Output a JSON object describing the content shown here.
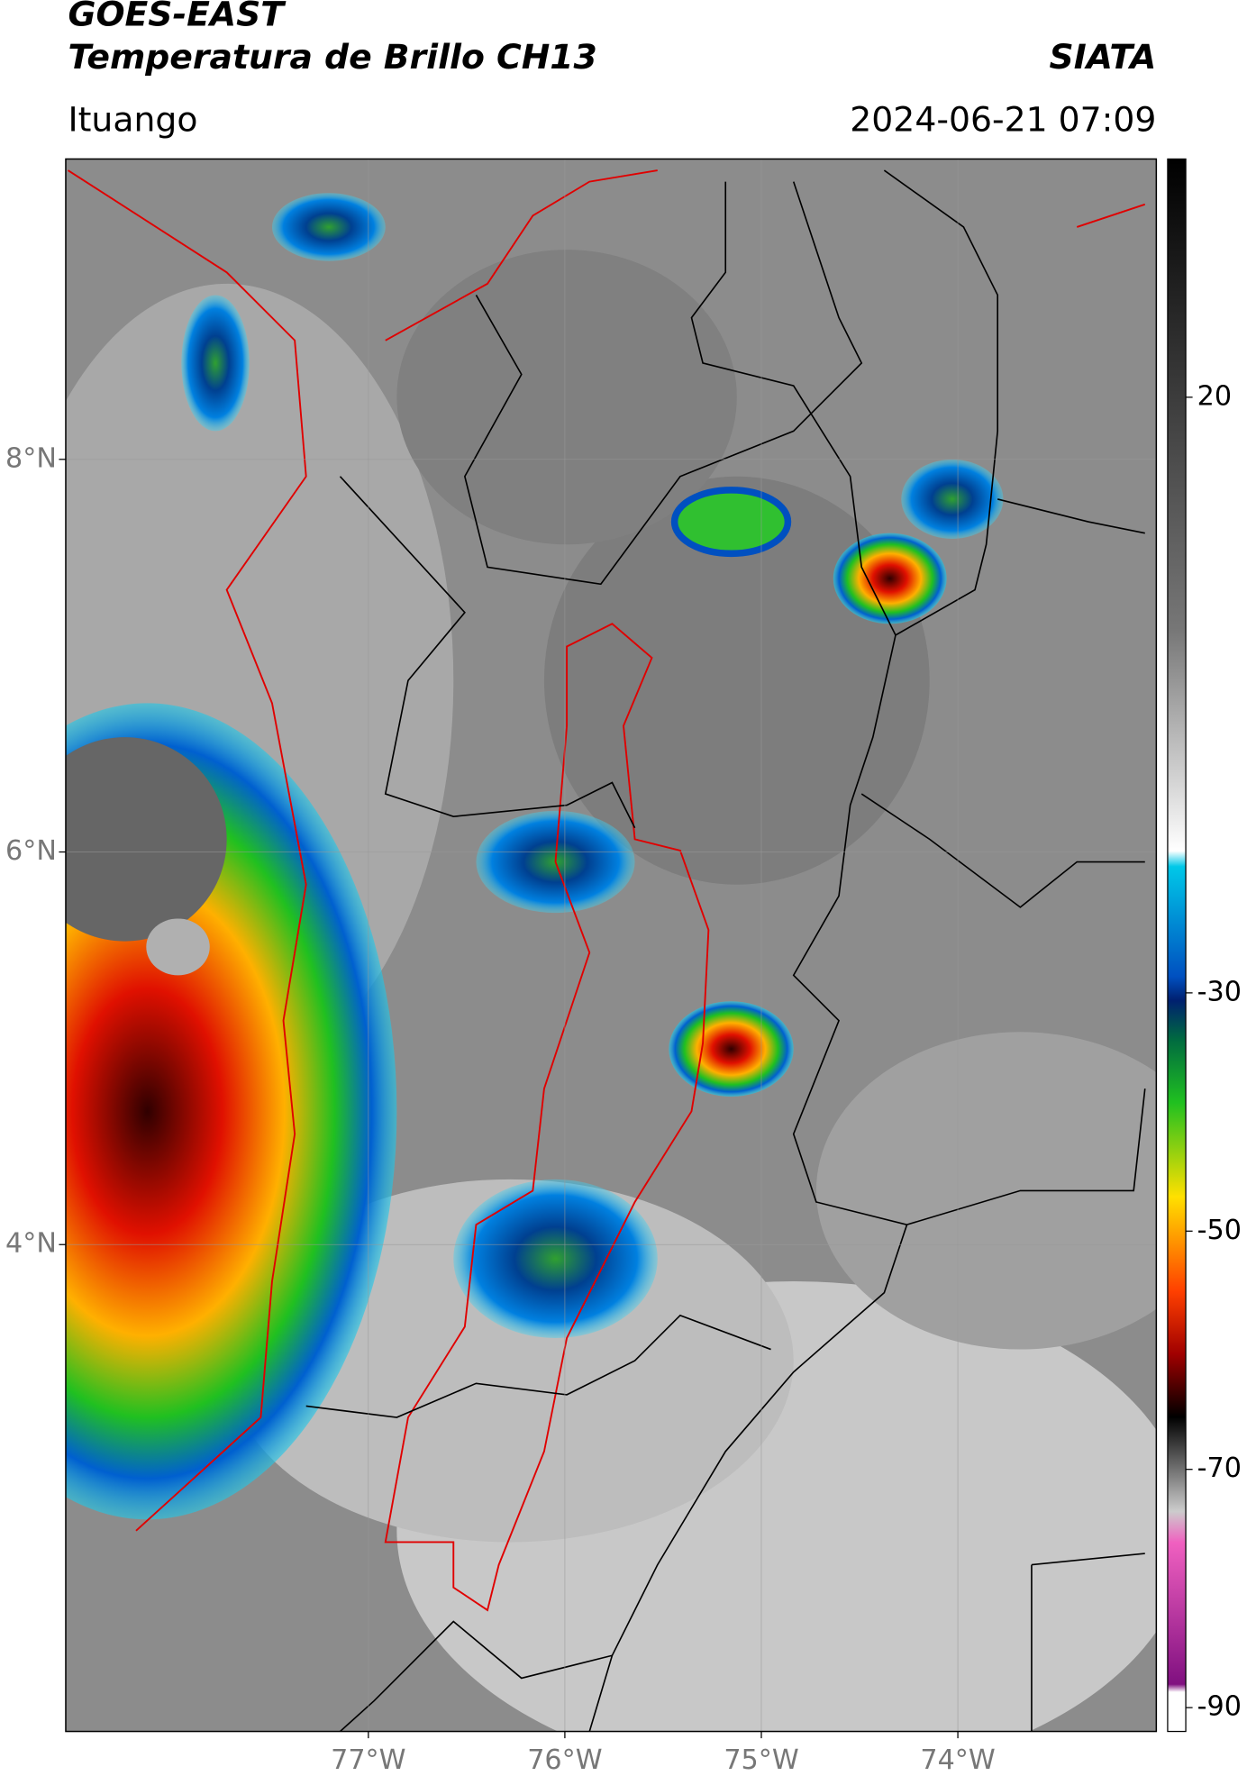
{
  "header": {
    "title": "GOES-EAST",
    "subtitle": "Temperatura de Brillo CH13",
    "source": "SIATA",
    "location": "Ituango",
    "datetime": "2024-06-21 07:09"
  },
  "map": {
    "xlim": [
      -78.54,
      -72.99
    ],
    "ylim": [
      1.52,
      9.53
    ],
    "xticks": [
      {
        "value": -77,
        "label": "77°W"
      },
      {
        "value": -76,
        "label": "76°W"
      },
      {
        "value": -75,
        "label": "75°W"
      },
      {
        "value": -74,
        "label": "74°W"
      }
    ],
    "yticks": [
      {
        "value": 8,
        "label": "8°N"
      },
      {
        "value": 6,
        "label": "6°N"
      },
      {
        "value": 4,
        "label": "4°N"
      }
    ],
    "grid": true
  },
  "colorbar": {
    "lim": [
      -92,
      40
    ],
    "ticks": [
      20,
      -30,
      -50,
      -70,
      -90
    ]
  }
}
